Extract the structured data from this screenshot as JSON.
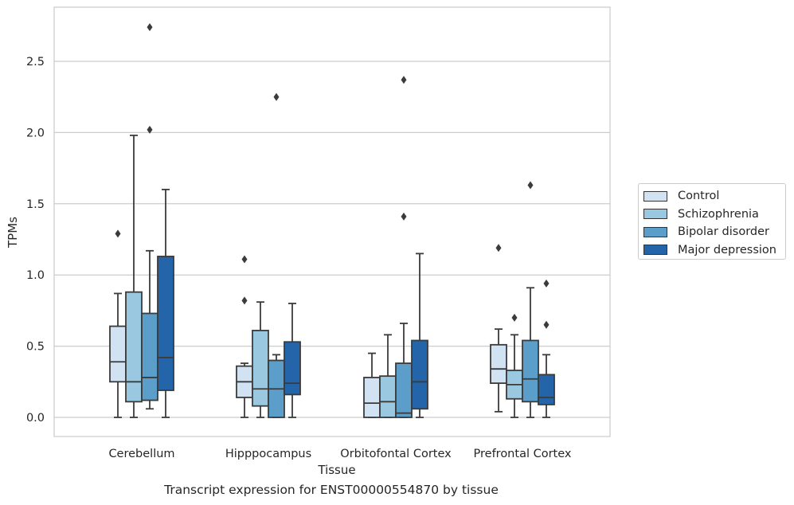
{
  "chart_data": {
    "type": "box",
    "xlabel": "Tissue",
    "ylabel": "TPMs",
    "ylim": [
      -0.13,
      2.88
    ],
    "yticks": [
      0.0,
      0.5,
      1.0,
      1.5,
      2.0,
      2.5
    ],
    "ytick_labels": [
      "0.0",
      "0.5",
      "1.0",
      "1.5",
      "2.0",
      "2.5"
    ],
    "grid": "horizontal",
    "legend_position": "outside-right",
    "categories": [
      "Cerebellum",
      "Hipppocampus",
      "Orbitofontal Cortex",
      "Prefrontal Cortex"
    ],
    "series": [
      {
        "name": "Control",
        "color": "#d1e2f2",
        "boxes": [
          {
            "whislo": 0.0,
            "q1": 0.25,
            "med": 0.39,
            "q3": 0.64,
            "whishi": 0.87,
            "fliers": [
              1.29
            ]
          },
          {
            "whislo": 0.0,
            "q1": 0.14,
            "med": 0.25,
            "q3": 0.36,
            "whishi": 0.38,
            "fliers": [
              0.82,
              1.11
            ]
          },
          {
            "whislo": 0.0,
            "q1": 0.0,
            "med": 0.1,
            "q3": 0.28,
            "whishi": 0.45,
            "fliers": []
          },
          {
            "whislo": 0.04,
            "q1": 0.24,
            "med": 0.34,
            "q3": 0.51,
            "whishi": 0.62,
            "fliers": [
              1.19
            ]
          }
        ]
      },
      {
        "name": "Schizophrenia",
        "color": "#9ac8e0",
        "boxes": [
          {
            "whislo": 0.0,
            "q1": 0.11,
            "med": 0.25,
            "q3": 0.88,
            "whishi": 1.98,
            "fliers": []
          },
          {
            "whislo": 0.0,
            "q1": 0.08,
            "med": 0.2,
            "q3": 0.61,
            "whishi": 0.81,
            "fliers": []
          },
          {
            "whislo": 0.0,
            "q1": 0.0,
            "med": 0.11,
            "q3": 0.29,
            "whishi": 0.58,
            "fliers": []
          },
          {
            "whislo": 0.0,
            "q1": 0.13,
            "med": 0.23,
            "q3": 0.33,
            "whishi": 0.58,
            "fliers": [
              0.7
            ]
          }
        ]
      },
      {
        "name": "Bipolar disorder",
        "color": "#5a9ec9",
        "boxes": [
          {
            "whislo": 0.06,
            "q1": 0.12,
            "med": 0.28,
            "q3": 0.73,
            "whishi": 1.17,
            "fliers": [
              2.02,
              2.74
            ]
          },
          {
            "whislo": 0.0,
            "q1": 0.0,
            "med": 0.2,
            "q3": 0.4,
            "whishi": 0.44,
            "fliers": [
              2.25
            ]
          },
          {
            "whislo": 0.0,
            "q1": 0.0,
            "med": 0.03,
            "q3": 0.38,
            "whishi": 0.66,
            "fliers": [
              1.41,
              2.37
            ]
          },
          {
            "whislo": 0.0,
            "q1": 0.11,
            "med": 0.27,
            "q3": 0.54,
            "whishi": 0.91,
            "fliers": [
              1.63
            ]
          }
        ]
      },
      {
        "name": "Major depression",
        "color": "#2464a8",
        "boxes": [
          {
            "whislo": 0.0,
            "q1": 0.19,
            "med": 0.42,
            "q3": 1.13,
            "whishi": 1.6,
            "fliers": []
          },
          {
            "whislo": 0.0,
            "q1": 0.16,
            "med": 0.24,
            "q3": 0.53,
            "whishi": 0.8,
            "fliers": []
          },
          {
            "whislo": 0.0,
            "q1": 0.06,
            "med": 0.25,
            "q3": 0.54,
            "whishi": 1.15,
            "fliers": []
          },
          {
            "whislo": 0.0,
            "q1": 0.09,
            "med": 0.14,
            "q3": 0.3,
            "whishi": 0.44,
            "fliers": [
              0.65,
              0.94
            ]
          }
        ]
      }
    ]
  },
  "caption": "Transcript expression for ENST00000554870 by tissue"
}
